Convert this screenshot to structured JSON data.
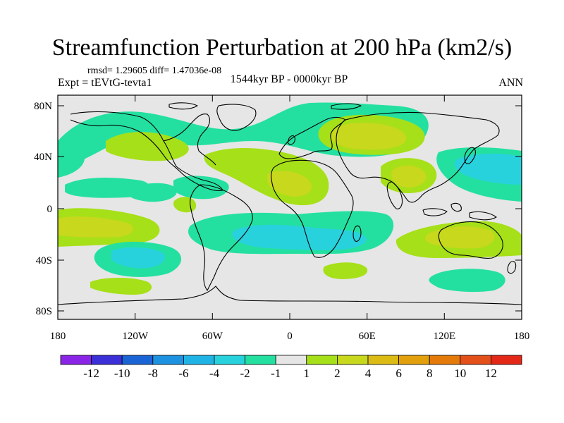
{
  "figure": {
    "title": "Streamfunction Perturbation at 200 hPa (km2/s)",
    "stats": "rmsd= 1.29605 diff= 1.47036e-08",
    "experiment": "Expt = tEVtG-tevta1",
    "period": "1544kyr BP - 0000kyr BP",
    "season": "ANN"
  },
  "axes": {
    "lon_ticks": [
      "180",
      "120W",
      "60W",
      "0",
      "60E",
      "120E",
      "180"
    ],
    "lat_ticks": [
      "80N",
      "40N",
      "0",
      "40S",
      "80S"
    ]
  },
  "colorbar": {
    "labels": [
      "-12",
      "-10",
      "-8",
      "-6",
      "-4",
      "-2",
      "-1",
      "1",
      "2",
      "4",
      "6",
      "8",
      "10",
      "12"
    ],
    "colors": [
      "#8a24e6",
      "#3b2fd8",
      "#1b64d6",
      "#1c92e0",
      "#20b4e6",
      "#28d2dc",
      "#24e0a0",
      "#e6e6e6",
      "#a6e018",
      "#c8d81c",
      "#dcbc14",
      "#e2a00c",
      "#e47a0a",
      "#e4501a",
      "#e42818"
    ]
  },
  "colors": {
    "background": "#ffffff",
    "ocean_neutral": "#e6e6e6",
    "coast": "#000000"
  }
}
